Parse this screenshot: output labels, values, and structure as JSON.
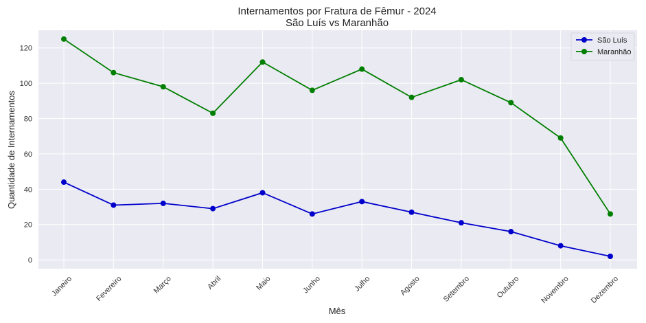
{
  "chart_data": {
    "type": "line",
    "title": "Internamentos por Fratura de Fêmur - 2024",
    "subtitle": "São Luís vs Maranhão",
    "xlabel": "Mês",
    "ylabel": "Quantidade de Internamentos",
    "categories": [
      "Janeiro",
      "Fevereiro",
      "Março",
      "Abril",
      "Maio",
      "Junho",
      "Julho",
      "Agosto",
      "Setembro",
      "Outubro",
      "Novembro",
      "Dezembro"
    ],
    "series": [
      {
        "name": "São Luís",
        "color": "#0000cc",
        "values": [
          44,
          31,
          32,
          29,
          38,
          26,
          33,
          27,
          21,
          16,
          8,
          2
        ]
      },
      {
        "name": "Maranhão",
        "color": "#007f00",
        "values": [
          125,
          106,
          98,
          83,
          112,
          96,
          108,
          92,
          102,
          89,
          69,
          26
        ]
      }
    ],
    "ylim": [
      -5,
      130
    ],
    "yticks": [
      0,
      20,
      40,
      60,
      80,
      100,
      120
    ],
    "grid": true,
    "legend": "top-right"
  }
}
